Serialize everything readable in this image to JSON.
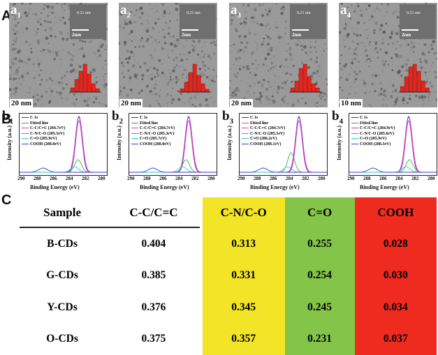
{
  "panel_labels": {
    "a": "A",
    "b": "B",
    "c": "C"
  },
  "tem_panels": [
    {
      "tag": "a",
      "sub": "1",
      "scale": "20 nm",
      "inset_scale": "2nm",
      "lattice": "0.21 nm",
      "hist_values": [
        0.15,
        0.45,
        0.75,
        1.0,
        0.65,
        0.3,
        0.12
      ]
    },
    {
      "tag": "a",
      "sub": "2",
      "scale": "20 nm",
      "inset_scale": "2nm",
      "lattice": "0.21 nm",
      "hist_values": [
        0.12,
        0.35,
        0.7,
        1.0,
        0.6,
        0.3,
        0.1
      ]
    },
    {
      "tag": "a",
      "sub": "3",
      "scale": "20 nm",
      "inset_scale": "2nm",
      "lattice": "0.21 nm",
      "hist_values": [
        0.15,
        0.4,
        0.85,
        1.0,
        0.55,
        0.3,
        0.15
      ]
    },
    {
      "tag": "a",
      "sub": "4",
      "scale": "10 nm",
      "inset_scale": "2nm",
      "lattice": "0.21 nm",
      "hist_values": [
        0.2,
        0.55,
        0.9,
        1.0,
        0.75,
        0.4,
        0.15
      ]
    }
  ],
  "xps_panels": [
    {
      "tag": "b",
      "sub": "1",
      "legend": [
        "C 1s",
        "Fitted line",
        "C-C/C=C (284.7eV)",
        "C-N/C-O (285.5eV)",
        "C=O (285.9eV)",
        "COOH (288.0eV)"
      ]
    },
    {
      "tag": "b",
      "sub": "2",
      "legend": [
        "C 1s",
        "Fitted line",
        "C-C/C=C (284.7eV)",
        "C-N/C-O (285.3eV)",
        "C=O (285.7eV)",
        "COOH (288.0eV)"
      ]
    },
    {
      "tag": "b",
      "sub": "3",
      "legend": [
        "C 1s",
        "Fitted line",
        "C-C/C=C (284.7eV)",
        "C-N/C-O (285.5eV)",
        "C=O (286.2eV)",
        "COOH (288.1eV)"
      ]
    },
    {
      "tag": "b",
      "sub": "4",
      "legend": [
        "C 1s",
        "Fitted line",
        "C-C/C=C (284.9eV)",
        "C-N/C-O (285.6eV)",
        "C=O (285.9eV)",
        "COOH (288.3eV)"
      ]
    }
  ],
  "xps_axis": {
    "ylabel": "Intensity (a.u.)",
    "xlabel": "Binding Energy (eV)",
    "ticks": [
      "290",
      "288",
      "286",
      "284",
      "282",
      "280"
    ]
  },
  "legend_colors": [
    "#2b2bff",
    "#e040a0",
    "#b04ad0",
    "#3cb83c",
    "#2fc9c9",
    "#3a3ad0"
  ],
  "table": {
    "headers": [
      "Sample",
      "C-C/C=C",
      "C-N/C-O",
      "C=O",
      "COOH"
    ],
    "rows": [
      [
        "B-CDs",
        "0.404",
        "0.313",
        "0.255",
        "0.028"
      ],
      [
        "G-CDs",
        "0.385",
        "0.331",
        "0.254",
        "0.030"
      ],
      [
        "Y-CDs",
        "0.376",
        "0.345",
        "0.245",
        "0.034"
      ],
      [
        "O-CDs",
        "0.375",
        "0.357",
        "0.231",
        "0.037"
      ]
    ],
    "colors": {
      "c_n": "#f2e426",
      "c_o": "#84c549",
      "cooh": "#ef2b20"
    }
  }
}
